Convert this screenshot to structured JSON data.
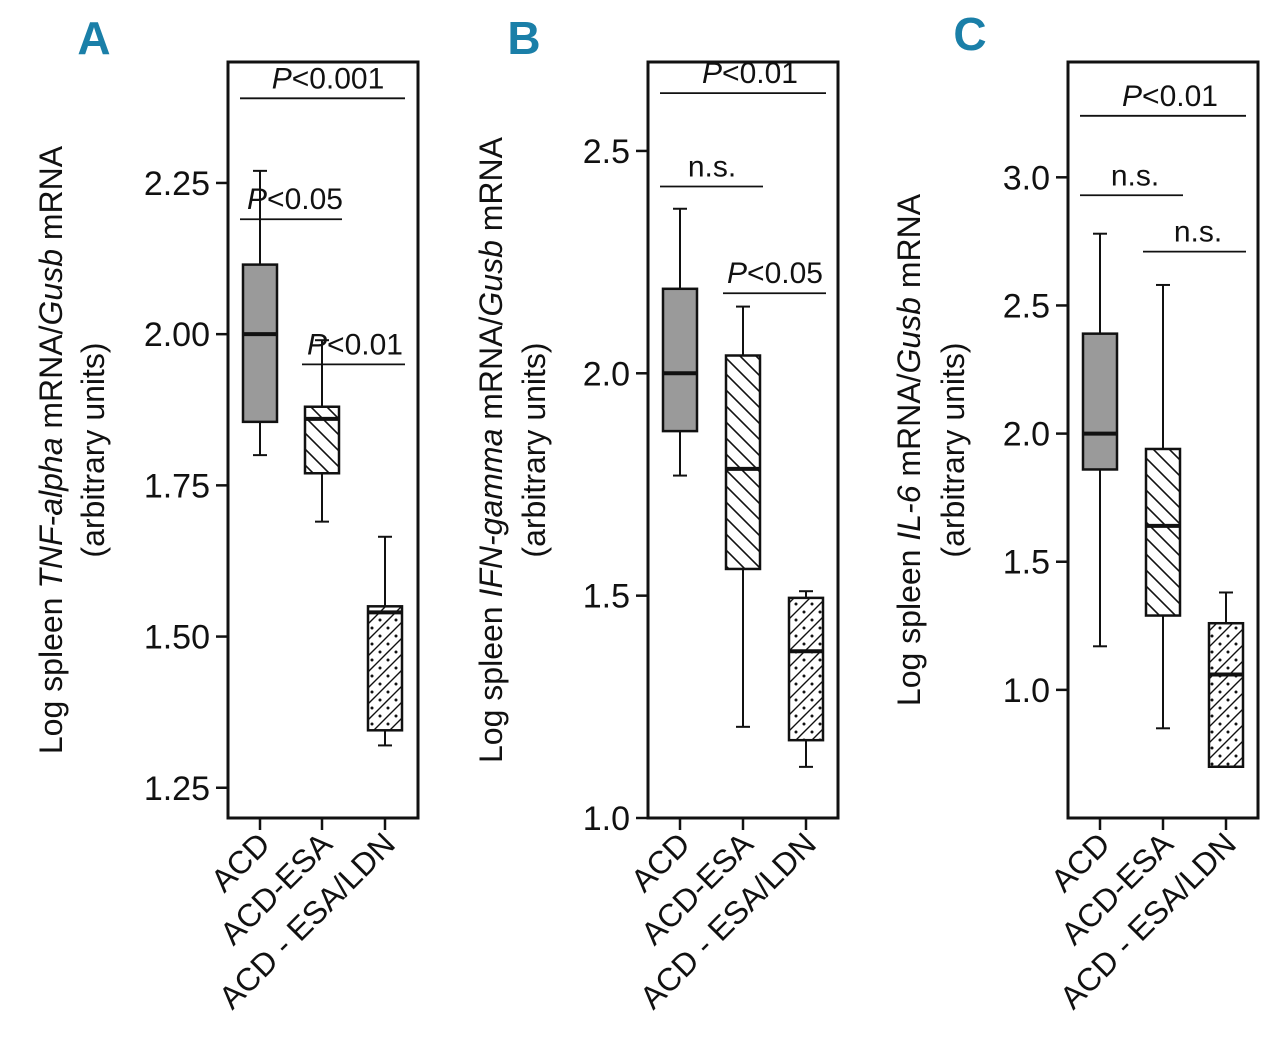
{
  "colors": {
    "panel_letter": "#1a7fa8",
    "ink": "#111111",
    "gray_box": "#9a9a9a"
  },
  "panels": [
    {
      "letter": "A",
      "ylabel_line1": [
        "Log spleen ",
        "TNF-alpha",
        " mRNA/",
        "Gusb",
        " mRNA"
      ],
      "ylabel_line2": "(arbitrary units)"
    },
    {
      "letter": "B",
      "ylabel_line1": [
        "Log spleen ",
        "IFN-gamma",
        " mRNA/",
        "Gusb",
        " mRNA"
      ],
      "ylabel_line2": "(arbitrary units)"
    },
    {
      "letter": "C",
      "ylabel_line1": [
        "Log spleen ",
        "IL-6",
        " mRNA/",
        "Gusb",
        " mRNA"
      ],
      "ylabel_line2": "(arbitrary units)"
    }
  ],
  "chart_data": [
    {
      "type": "box",
      "panel": "A",
      "ylabel": "Log spleen TNF-alpha mRNA/Gusb mRNA (arbitrary units)",
      "ylim": [
        1.2,
        2.45
      ],
      "yticks": [
        1.25,
        1.5,
        1.75,
        2.0,
        2.25
      ],
      "ytick_labels": [
        "1.25",
        "1.50",
        "1.75",
        "2.00",
        "2.25"
      ],
      "categories": [
        "ACD",
        "ACD-ESA",
        "ACD - ESA/LDN"
      ],
      "fills": [
        "gray",
        "hatch",
        "hatch-dots"
      ],
      "boxes": [
        {
          "min": 1.8,
          "q1": 1.855,
          "median": 2.0,
          "q3": 2.115,
          "max": 2.27
        },
        {
          "min": 1.69,
          "q1": 1.77,
          "median": 1.86,
          "q3": 1.88,
          "max": 1.99
        },
        {
          "min": 1.32,
          "q1": 1.345,
          "median": 1.54,
          "q3": 1.55,
          "max": 1.665
        }
      ],
      "comparisons": [
        {
          "from": 0,
          "to": 1,
          "y": 2.19,
          "label": "P<0.05"
        },
        {
          "from": 1,
          "to": 2,
          "y": 1.95,
          "label": "P<0.01"
        },
        {
          "from": 0,
          "to": 2,
          "y": 2.39,
          "label": "P<0.001"
        }
      ]
    },
    {
      "type": "box",
      "panel": "B",
      "ylabel": "Log spleen IFN-gamma mRNA/Gusb mRNA (arbitrary units)",
      "ylim": [
        1.0,
        2.7
      ],
      "yticks": [
        1.0,
        1.5,
        2.0,
        2.5
      ],
      "ytick_labels": [
        "1.0",
        "1.5",
        "2.0",
        "2.5"
      ],
      "categories": [
        "ACD",
        "ACD-ESA",
        "ACD - ESA/LDN"
      ],
      "fills": [
        "gray",
        "hatch",
        "hatch-dots"
      ],
      "boxes": [
        {
          "min": 1.77,
          "q1": 1.87,
          "median": 2.0,
          "q3": 2.19,
          "max": 2.37
        },
        {
          "min": 1.205,
          "q1": 1.56,
          "median": 1.785,
          "q3": 2.04,
          "max": 2.15
        },
        {
          "min": 1.115,
          "q1": 1.175,
          "median": 1.375,
          "q3": 1.495,
          "max": 1.51
        }
      ],
      "comparisons": [
        {
          "from": 0,
          "to": 1,
          "y": 2.42,
          "label": "n.s."
        },
        {
          "from": 1,
          "to": 2,
          "y": 2.18,
          "label": "P<0.05"
        },
        {
          "from": 0,
          "to": 2,
          "y": 2.63,
          "label": "P<0.01"
        }
      ]
    },
    {
      "type": "box",
      "panel": "C",
      "ylabel": "Log spleen IL-6 mRNA/Gusb mRNA (arbitrary units)",
      "ylim": [
        0.5,
        3.45
      ],
      "yticks": [
        1.0,
        1.5,
        2.0,
        2.5,
        3.0
      ],
      "ytick_labels": [
        "1.0",
        "1.5",
        "2.0",
        "2.5",
        "3.0"
      ],
      "categories": [
        "ACD",
        "ACD-ESA",
        "ACD - ESA/LDN"
      ],
      "fills": [
        "gray",
        "hatch",
        "hatch-dots"
      ],
      "boxes": [
        {
          "min": 1.17,
          "q1": 1.86,
          "median": 2.0,
          "q3": 2.39,
          "max": 2.78
        },
        {
          "min": 0.85,
          "q1": 1.29,
          "median": 1.64,
          "q3": 1.94,
          "max": 2.58
        },
        {
          "min": 0.7,
          "q1": 0.7,
          "median": 1.06,
          "q3": 1.26,
          "max": 1.38
        }
      ],
      "comparisons": [
        {
          "from": 0,
          "to": 1,
          "y": 2.93,
          "label": "n.s."
        },
        {
          "from": 1,
          "to": 2,
          "y": 2.71,
          "label": "n.s."
        },
        {
          "from": 0,
          "to": 2,
          "y": 3.24,
          "label": "P<0.01"
        }
      ]
    }
  ]
}
